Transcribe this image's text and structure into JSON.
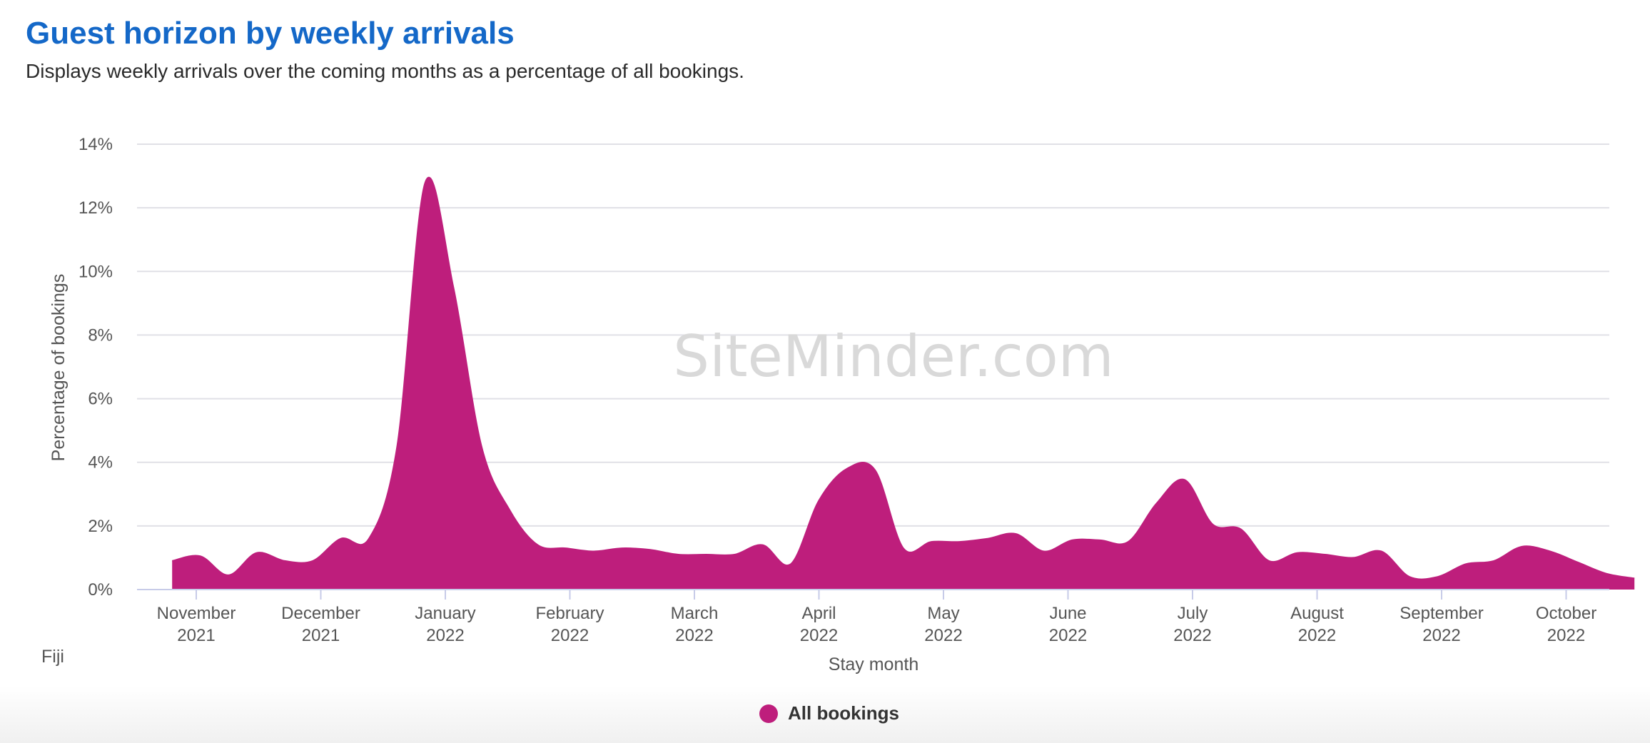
{
  "header": {
    "title": "Guest horizon by weekly arrivals",
    "subtitle": "Displays weekly arrivals over the coming months as a percentage of all bookings."
  },
  "watermark": "SiteMinder.com",
  "region": "Fiji",
  "colors": {
    "series": "#be1e7c",
    "title": "#1468c8",
    "grid": "#e0e0e6",
    "watermark": "#d9d9d9"
  },
  "chart_data": {
    "type": "area",
    "title": "Guest horizon by weekly arrivals",
    "xlabel": "Stay month",
    "ylabel": "Percentage of bookings",
    "ylim": [
      0,
      14
    ],
    "y_ticks": [
      "0%",
      "2%",
      "4%",
      "6%",
      "8%",
      "10%",
      "12%",
      "14%"
    ],
    "x_ticks": [
      {
        "month": "November",
        "year": "2021"
      },
      {
        "month": "December",
        "year": "2021"
      },
      {
        "month": "January",
        "year": "2022"
      },
      {
        "month": "February",
        "year": "2022"
      },
      {
        "month": "March",
        "year": "2022"
      },
      {
        "month": "April",
        "year": "2022"
      },
      {
        "month": "May",
        "year": "2022"
      },
      {
        "month": "June",
        "year": "2022"
      },
      {
        "month": "July",
        "year": "2022"
      },
      {
        "month": "August",
        "year": "2022"
      },
      {
        "month": "September",
        "year": "2022"
      },
      {
        "month": "October",
        "year": "2022"
      }
    ],
    "grid": true,
    "legend_position": "bottom-center",
    "series": [
      {
        "name": "All bookings",
        "x": [
          "2021-10-26",
          "2021-11-02",
          "2021-11-09",
          "2021-11-16",
          "2021-11-23",
          "2021-11-30",
          "2021-12-07",
          "2021-12-14",
          "2021-12-21",
          "2021-12-28",
          "2022-01-04",
          "2022-01-11",
          "2022-01-18",
          "2022-01-25",
          "2022-02-01",
          "2022-02-08",
          "2022-02-15",
          "2022-02-22",
          "2022-03-01",
          "2022-03-08",
          "2022-03-15",
          "2022-03-22",
          "2022-03-29",
          "2022-04-05",
          "2022-04-12",
          "2022-04-19",
          "2022-04-26",
          "2022-05-03",
          "2022-05-10",
          "2022-05-17",
          "2022-05-24",
          "2022-05-31",
          "2022-06-07",
          "2022-06-14",
          "2022-06-21",
          "2022-06-28",
          "2022-07-05",
          "2022-07-12",
          "2022-07-19",
          "2022-07-26",
          "2022-08-02",
          "2022-08-09",
          "2022-08-16",
          "2022-08-23",
          "2022-08-30",
          "2022-09-06",
          "2022-09-13",
          "2022-09-20",
          "2022-09-27",
          "2022-10-04",
          "2022-10-11",
          "2022-10-18",
          "2022-10-25"
        ],
        "values": [
          0.9,
          1.05,
          0.45,
          1.15,
          0.9,
          0.9,
          1.6,
          1.6,
          4.5,
          12.8,
          9.5,
          4.5,
          2.5,
          1.4,
          1.3,
          1.2,
          1.3,
          1.25,
          1.1,
          1.1,
          1.1,
          1.4,
          0.8,
          2.8,
          3.8,
          3.75,
          1.3,
          1.5,
          1.5,
          1.6,
          1.75,
          1.2,
          1.55,
          1.55,
          1.5,
          2.7,
          3.45,
          2.05,
          1.9,
          0.9,
          1.15,
          1.1,
          1.0,
          1.2,
          0.4,
          0.4,
          0.8,
          0.9,
          1.35,
          1.2,
          0.85,
          0.5,
          0.35
        ]
      }
    ]
  }
}
